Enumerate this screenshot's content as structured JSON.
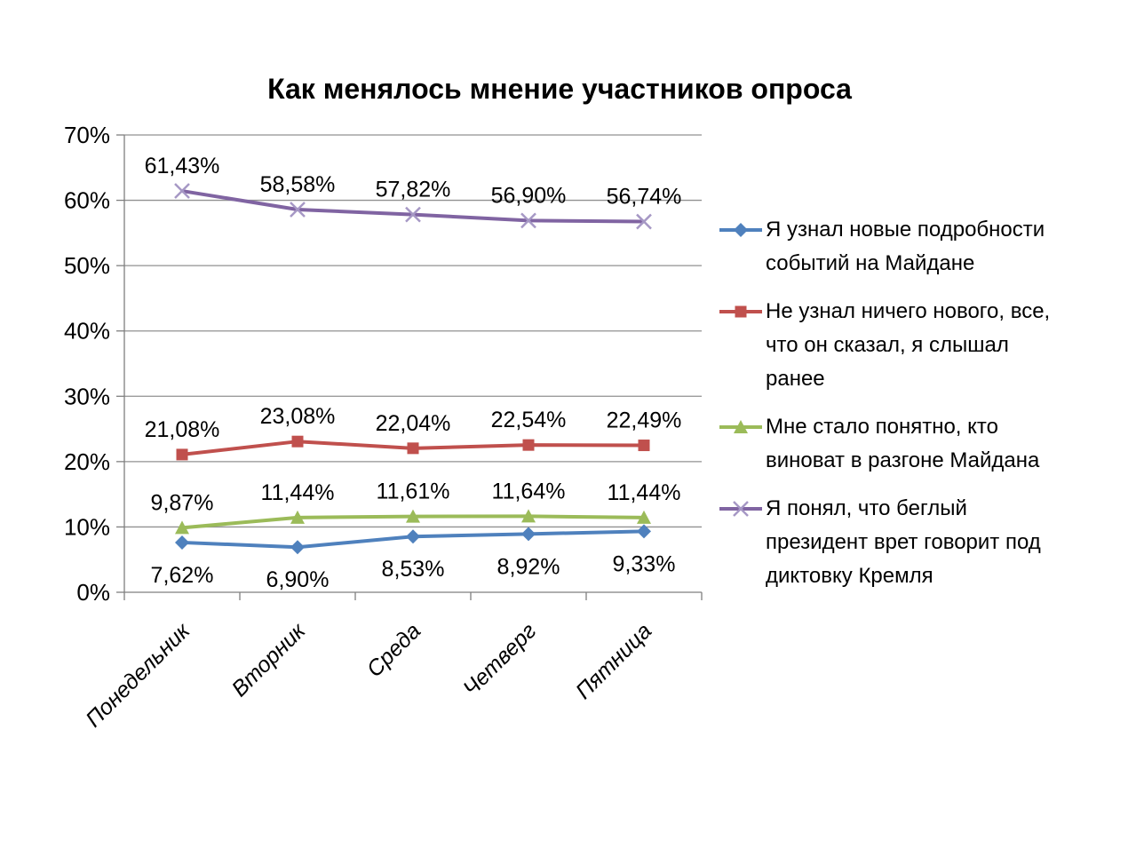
{
  "chart_data": {
    "type": "line",
    "title": "Как менялось мнение участников опроса",
    "categories": [
      "Понедельник",
      "Вторник",
      "Среда",
      "Четверг",
      "Пятница"
    ],
    "series": [
      {
        "name": "Я узнал новые подробности событий на Майдане",
        "values": [
          7.62,
          6.9,
          8.53,
          8.92,
          9.33
        ],
        "labels": [
          "7,62%",
          "6,90%",
          "8,53%",
          "8,92%",
          "9,33%"
        ],
        "color": "#4F81BD",
        "marker": "diamond",
        "marker_color": "#4F81BD",
        "label_position": "below"
      },
      {
        "name": "Не узнал ничего нового, все, что он сказал, я слышал ранее",
        "values": [
          21.08,
          23.08,
          22.04,
          22.54,
          22.49
        ],
        "labels": [
          "21,08%",
          "23,08%",
          "22,04%",
          "22,54%",
          "22,49%"
        ],
        "color": "#C0504D",
        "marker": "square",
        "marker_color": "#C0504D",
        "label_position": "above"
      },
      {
        "name": "Мне стало понятно, кто виноват в разгоне Майдана",
        "values": [
          9.87,
          11.44,
          11.61,
          11.64,
          11.44
        ],
        "labels": [
          "9,87%",
          "11,44%",
          "11,61%",
          "11,64%",
          "11,44%"
        ],
        "color": "#9BBB59",
        "marker": "triangle",
        "marker_color": "#9BBB59",
        "label_position": "above"
      },
      {
        "name": "Я понял, что беглый президент врет говорит под диктовку Кремля",
        "values": [
          61.43,
          58.58,
          57.82,
          56.9,
          56.74
        ],
        "labels": [
          "61,43%",
          "58,58%",
          "57,82%",
          "56,90%",
          "56,74%"
        ],
        "color": "#8064A2",
        "marker": "x",
        "marker_color": "#A698C5",
        "label_position": "above"
      }
    ],
    "y_axis": {
      "ticks": [
        "0%",
        "10%",
        "20%",
        "30%",
        "40%",
        "50%",
        "60%",
        "70%"
      ],
      "min": 0,
      "max": 70,
      "step": 10
    },
    "ylim": [
      0,
      70
    ],
    "grid": true,
    "legend_position": "right",
    "colors": {
      "gridline": "#919191",
      "axis": "#7F7F7F",
      "text": "#000000",
      "background": "#FFFFFF"
    }
  }
}
